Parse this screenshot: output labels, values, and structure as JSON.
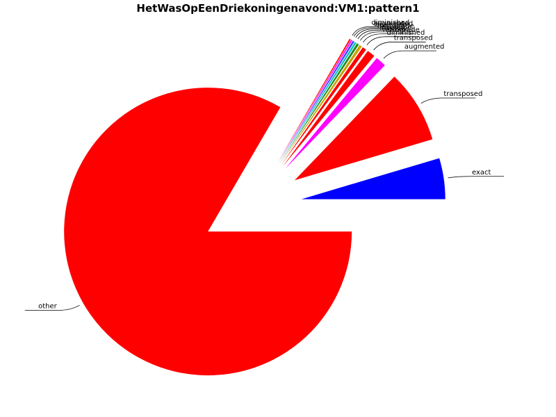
{
  "chart_data": {
    "type": "pie",
    "title": "HetWasOpEenDriekoningenavond:VM1:pattern1",
    "slices": [
      {
        "label": "exact",
        "value": 4.6,
        "color": "#0000ff"
      },
      {
        "label": "transposed",
        "value": 8.2,
        "color": "#ff0000"
      },
      {
        "label": "augmented",
        "value": 1.2,
        "color": "#ff00ff"
      },
      {
        "label": "transposed",
        "value": 0.9,
        "color": "#ff0000"
      },
      {
        "label": "diminished",
        "value": 0.45,
        "color": "#ff0000"
      },
      {
        "label": "retrograde",
        "value": 0.3,
        "color": "#c8a000"
      },
      {
        "label": "inversion",
        "value": 0.25,
        "color": "#228b22"
      },
      {
        "label": "retrograde",
        "value": 0.2,
        "color": "#00c0c0"
      },
      {
        "label": "inversion",
        "value": 0.2,
        "color": "#4040ff"
      },
      {
        "label": "augmented",
        "value": 0.15,
        "color": "#ff00ff"
      },
      {
        "label": "diminished",
        "value": 0.15,
        "color": "#ff0000"
      },
      {
        "label": "other",
        "value": 83.4,
        "color": "#ff0000"
      }
    ]
  }
}
